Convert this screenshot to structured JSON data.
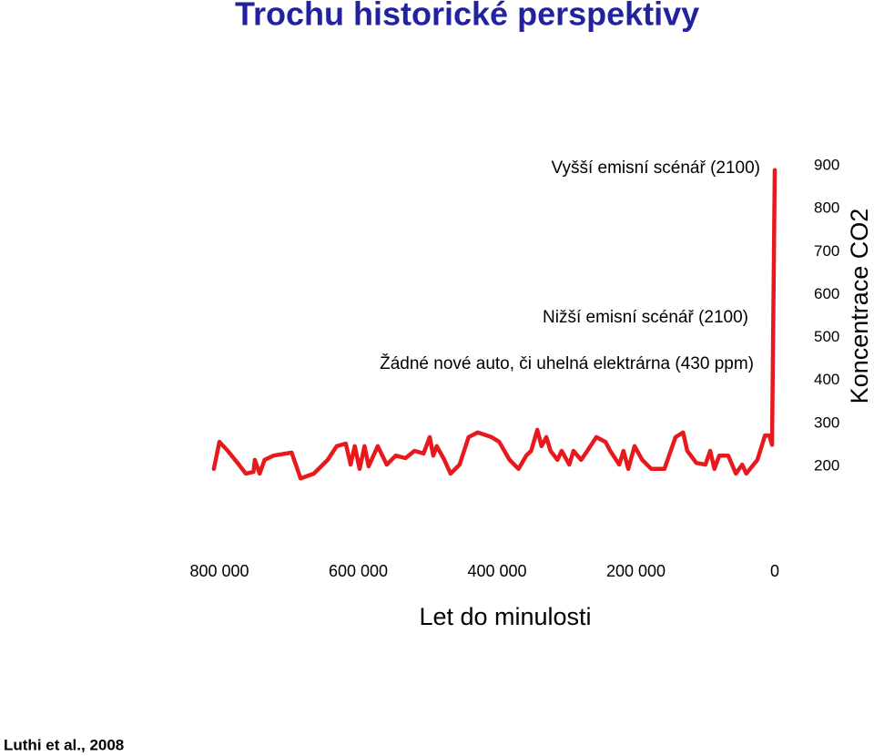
{
  "chart_data": {
    "type": "line",
    "title": "Trochu historické perspektivy",
    "x_label": "Let do minulosti",
    "y_label": "Koncentrace CO2",
    "source": "Luthi et al., 2008",
    "annotations": [
      "Vyšší emisní scénář (2100)",
      "Nižší emisní scénář (2100)",
      "Žádné nové auto, či uhelná elektrárna (430 ppm)"
    ],
    "xlim": [
      800000,
      0
    ],
    "xticks": [
      {
        "value": 800000,
        "label": "800 000"
      },
      {
        "value": 600000,
        "label": "600 000"
      },
      {
        "value": 400000,
        "label": "400 000"
      },
      {
        "value": 200000,
        "label": "200 000"
      },
      0
    ],
    "ylim": [
      200,
      900
    ],
    "yticks": [
      900,
      800,
      700,
      600,
      500,
      400,
      300,
      200
    ],
    "x": [
      808000,
      800000,
      788000,
      772000,
      762000,
      751000,
      749000,
      742000,
      735000,
      722000,
      696000,
      683000,
      664000,
      644000,
      631000,
      618000,
      611000,
      605000,
      598000,
      591000,
      585000,
      572000,
      559000,
      546000,
      532000,
      519000,
      506000,
      497000,
      492000,
      487000,
      476000,
      467000,
      454000,
      441000,
      428000,
      408000,
      397000,
      382000,
      369000,
      358000,
      351000,
      342000,
      336000,
      329000,
      323000,
      313000,
      307000,
      296000,
      290000,
      279000,
      270000,
      257000,
      244000,
      237000,
      224000,
      218000,
      211000,
      202000,
      191000,
      178000,
      159000,
      143000,
      132000,
      126000,
      113000,
      100000,
      93000,
      87000,
      80000,
      67000,
      56000,
      47000,
      41000,
      25000,
      14000,
      8000,
      4000,
      0
    ],
    "series": [
      {
        "name": "CO2",
        "color": "#e8191d",
        "values": [
          194,
          257,
          236,
          204,
          183,
          187,
          215,
          183,
          215,
          225,
          232,
          172,
          183,
          215,
          247,
          253,
          204,
          247,
          194,
          247,
          200,
          247,
          204,
          225,
          219,
          236,
          230,
          268,
          225,
          247,
          215,
          183,
          204,
          268,
          279,
          268,
          257,
          215,
          194,
          225,
          236,
          285,
          247,
          268,
          236,
          215,
          236,
          204,
          236,
          215,
          236,
          268,
          257,
          236,
          204,
          236,
          194,
          247,
          215,
          194,
          194,
          268,
          279,
          236,
          208,
          204,
          236,
          194,
          225,
          225,
          183,
          204,
          183,
          215,
          272,
          272,
          250,
          890
        ]
      }
    ]
  }
}
